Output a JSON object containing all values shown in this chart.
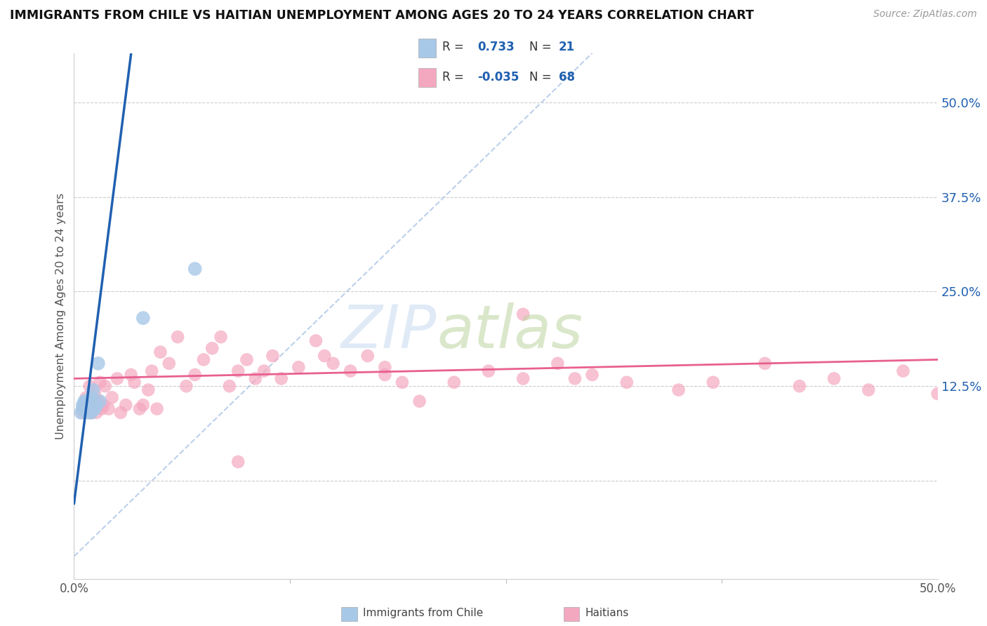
{
  "title": "IMMIGRANTS FROM CHILE VS HAITIAN UNEMPLOYMENT AMONG AGES 20 TO 24 YEARS CORRELATION CHART",
  "source": "Source: ZipAtlas.com",
  "ylabel": "Unemployment Among Ages 20 to 24 years",
  "xrange": [
    0.0,
    0.5
  ],
  "yrange": [
    -0.13,
    0.565
  ],
  "ytick_values": [
    0.0,
    0.125,
    0.25,
    0.375,
    0.5
  ],
  "ytick_labels": [
    "",
    "12.5%",
    "25.0%",
    "37.5%",
    "50.0%"
  ],
  "xtick_values": [
    0.0,
    0.5
  ],
  "xtick_labels": [
    "0.0%",
    "50.0%"
  ],
  "legend_r_chile": "0.733",
  "legend_n_chile": "21",
  "legend_r_haiti": "-0.035",
  "legend_n_haiti": "68",
  "chile_color": "#a8c8e8",
  "haiti_color": "#f4a8c0",
  "chile_line_color": "#2060b0",
  "haiti_line_color": "#e86090",
  "watermark_color_zip": "#c0d8f0",
  "watermark_color_atlas": "#b8d0a0",
  "chile_points_x": [
    0.004,
    0.005,
    0.005,
    0.006,
    0.006,
    0.007,
    0.007,
    0.008,
    0.008,
    0.009,
    0.009,
    0.01,
    0.01,
    0.01,
    0.011,
    0.012,
    0.013,
    0.014,
    0.015,
    0.04,
    0.07
  ],
  "chile_points_y": [
    0.09,
    0.095,
    0.1,
    0.1,
    0.105,
    0.095,
    0.105,
    0.09,
    0.1,
    0.095,
    0.105,
    0.09,
    0.095,
    0.11,
    0.12,
    0.095,
    0.1,
    0.155,
    0.105,
    0.215,
    0.28
  ],
  "haiti_points_x": [
    0.005,
    0.006,
    0.007,
    0.008,
    0.009,
    0.01,
    0.011,
    0.012,
    0.013,
    0.014,
    0.015,
    0.016,
    0.017,
    0.018,
    0.02,
    0.022,
    0.025,
    0.027,
    0.03,
    0.033,
    0.035,
    0.038,
    0.04,
    0.043,
    0.045,
    0.048,
    0.05,
    0.055,
    0.06,
    0.065,
    0.07,
    0.075,
    0.08,
    0.085,
    0.09,
    0.095,
    0.1,
    0.105,
    0.11,
    0.115,
    0.12,
    0.13,
    0.14,
    0.15,
    0.16,
    0.17,
    0.18,
    0.19,
    0.2,
    0.22,
    0.24,
    0.26,
    0.28,
    0.3,
    0.32,
    0.35,
    0.37,
    0.4,
    0.42,
    0.44,
    0.46,
    0.48,
    0.5,
    0.26,
    0.29,
    0.18,
    0.145,
    0.095
  ],
  "haiti_points_y": [
    0.09,
    0.1,
    0.11,
    0.095,
    0.125,
    0.09,
    0.1,
    0.115,
    0.09,
    0.105,
    0.13,
    0.095,
    0.1,
    0.125,
    0.095,
    0.11,
    0.135,
    0.09,
    0.1,
    0.14,
    0.13,
    0.095,
    0.1,
    0.12,
    0.145,
    0.095,
    0.17,
    0.155,
    0.19,
    0.125,
    0.14,
    0.16,
    0.175,
    0.19,
    0.125,
    0.145,
    0.16,
    0.135,
    0.145,
    0.165,
    0.135,
    0.15,
    0.185,
    0.155,
    0.145,
    0.165,
    0.15,
    0.13,
    0.105,
    0.13,
    0.145,
    0.135,
    0.155,
    0.14,
    0.13,
    0.12,
    0.13,
    0.155,
    0.125,
    0.135,
    0.12,
    0.145,
    0.115,
    0.22,
    0.135,
    0.14,
    0.165,
    0.025
  ],
  "chile_slope": 18.0,
  "chile_intercept": -0.03,
  "haiti_slope": 0.05,
  "haiti_intercept": 0.135,
  "ref_line_x1": 0.0,
  "ref_line_y1": -0.1,
  "ref_line_x2": 0.3,
  "ref_line_y2": 0.565
}
